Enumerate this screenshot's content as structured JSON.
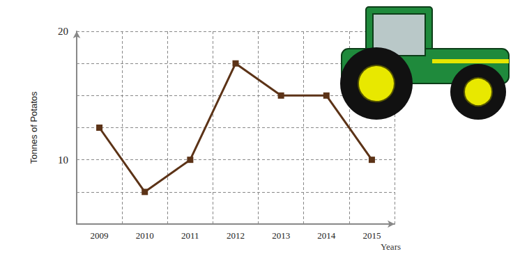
{
  "chart_data": {
    "type": "line",
    "categories": [
      "2009",
      "2010",
      "2011",
      "2012",
      "2013",
      "2014",
      "2015"
    ],
    "values": [
      12.5,
      7.5,
      10,
      17.5,
      15,
      15,
      10
    ],
    "color": "#5c3317",
    "marker": "square",
    "xlabel": "Years",
    "ylabel": "Tonnes of Potatos",
    "ylim": [
      5,
      20
    ],
    "yticks": [
      10,
      20
    ],
    "grid": true
  }
}
